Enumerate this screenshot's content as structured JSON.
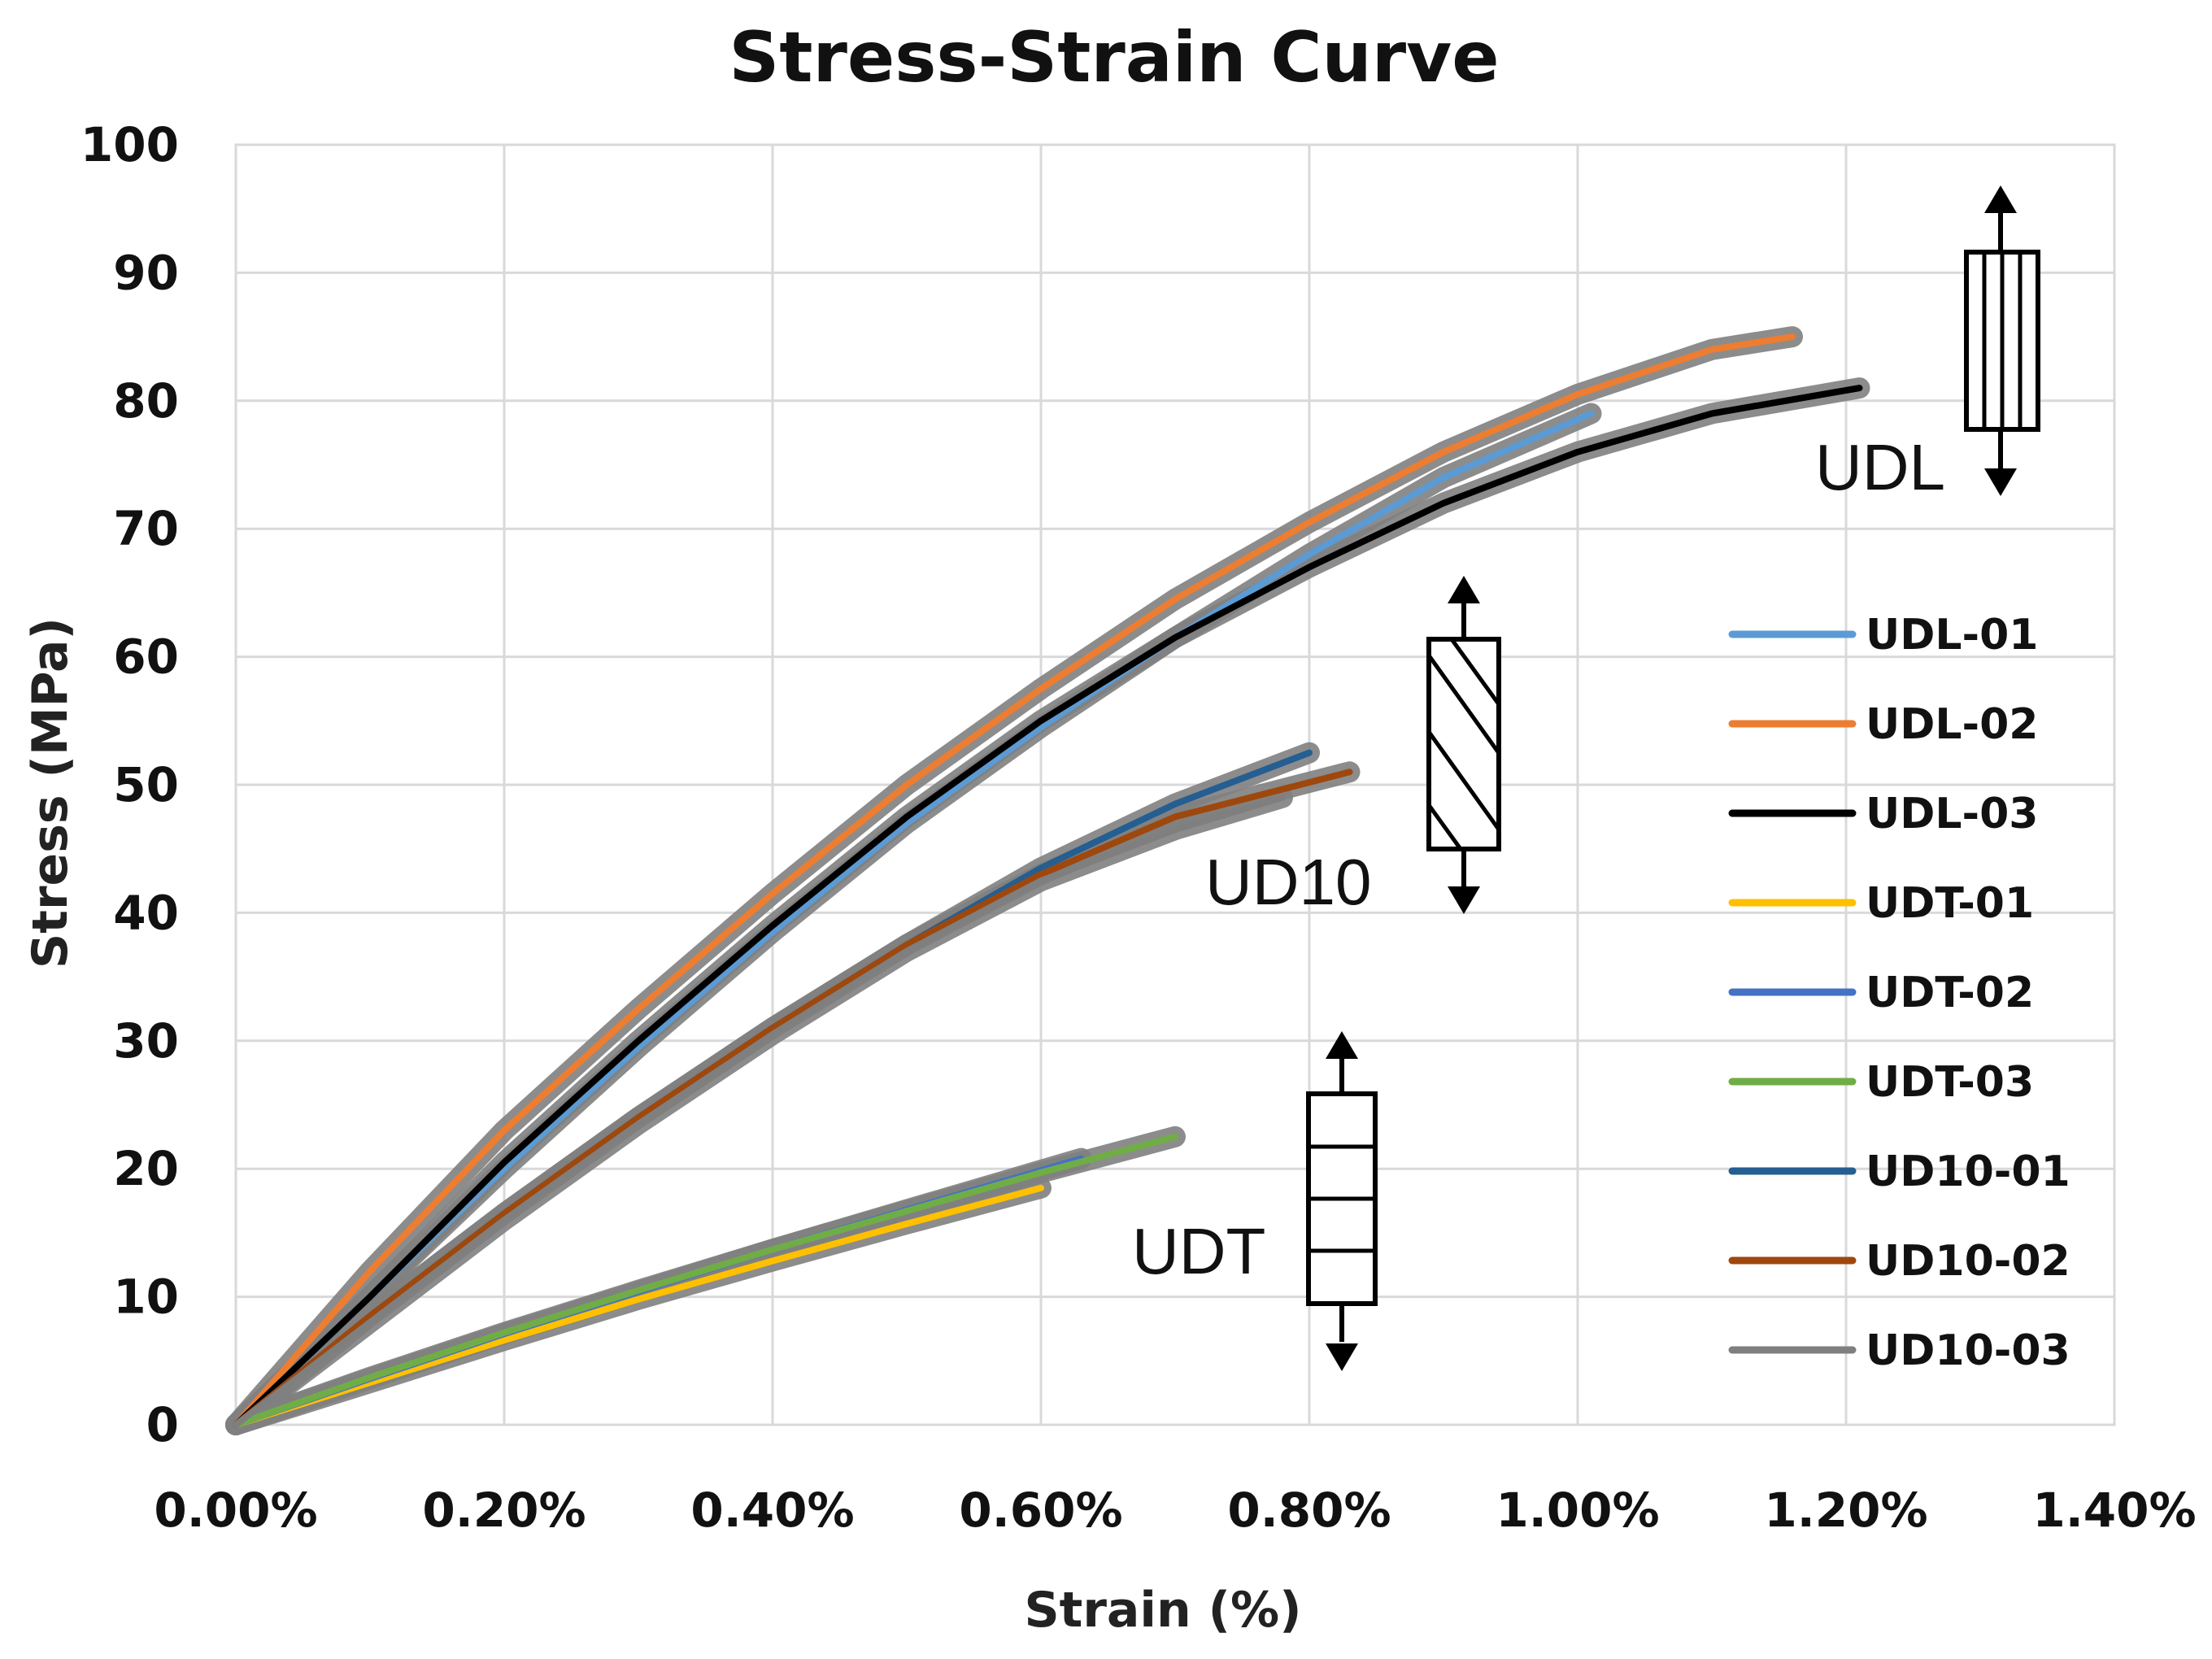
{
  "chart_data": {
    "type": "line",
    "title": "Stress-Strain Curve",
    "xlabel": "Strain (%)",
    "ylabel": "Stress (MPa)",
    "xlim": [
      0,
      1.4
    ],
    "ylim": [
      0,
      100
    ],
    "xticks": [
      0,
      0.2,
      0.4,
      0.6,
      0.8,
      1.0,
      1.2,
      1.4
    ],
    "xtick_labels": [
      "0.00%",
      "0.20%",
      "0.40%",
      "0.60%",
      "0.80%",
      "1.00%",
      "1.20%",
      "1.40%"
    ],
    "yticks": [
      0,
      10,
      20,
      30,
      40,
      50,
      60,
      70,
      80,
      90,
      100
    ],
    "ytick_labels": [
      "0",
      "10",
      "20",
      "30",
      "40",
      "50",
      "60",
      "70",
      "80",
      "90",
      "100"
    ],
    "grid": true,
    "legend_position": "right",
    "series": [
      {
        "name": "UDL-01",
        "color": "#5b9bd5",
        "x": [
          0,
          0.1,
          0.2,
          0.3,
          0.4,
          0.5,
          0.6,
          0.7,
          0.8,
          0.9,
          1.01
        ],
        "y": [
          0,
          10,
          20,
          29.5,
          38.5,
          47,
          54.5,
          61.5,
          68,
          74,
          79
        ]
      },
      {
        "name": "UDL-02",
        "color": "#ed7d31",
        "x": [
          0,
          0.1,
          0.2,
          0.3,
          0.4,
          0.5,
          0.6,
          0.7,
          0.8,
          0.9,
          1.0,
          1.1,
          1.16
        ],
        "y": [
          0,
          12,
          23,
          32.5,
          41.5,
          50,
          57.5,
          64.5,
          70.5,
          76,
          80.5,
          84,
          85
        ]
      },
      {
        "name": "UDL-03",
        "color": "#000000",
        "x": [
          0,
          0.1,
          0.2,
          0.3,
          0.4,
          0.5,
          0.6,
          0.7,
          0.8,
          0.9,
          1.0,
          1.1,
          1.21
        ],
        "y": [
          0,
          10,
          20.5,
          30,
          39,
          47.5,
          55,
          61.5,
          67,
          72,
          76,
          79,
          81
        ]
      },
      {
        "name": "UDT-01",
        "color": "#ffc000",
        "x": [
          0,
          0.1,
          0.2,
          0.3,
          0.4,
          0.5,
          0.6
        ],
        "y": [
          0,
          3.3,
          6.6,
          9.8,
          12.8,
          15.7,
          18.5
        ]
      },
      {
        "name": "UDT-02",
        "color": "#4472c4",
        "x": [
          0,
          0.1,
          0.2,
          0.3,
          0.4,
          0.5,
          0.63
        ],
        "y": [
          0,
          3.6,
          7.1,
          10.4,
          13.7,
          16.8,
          20.8
        ]
      },
      {
        "name": "UDT-03",
        "color": "#70ad47",
        "x": [
          0,
          0.1,
          0.2,
          0.3,
          0.4,
          0.5,
          0.6,
          0.7
        ],
        "y": [
          0,
          3.7,
          7.2,
          10.5,
          13.7,
          16.7,
          19.7,
          22.5
        ]
      },
      {
        "name": "UD10-01",
        "color": "#255e91",
        "x": [
          0,
          0.1,
          0.2,
          0.3,
          0.4,
          0.5,
          0.6,
          0.7,
          0.8
        ],
        "y": [
          0,
          8.5,
          16.5,
          24,
          31,
          37.5,
          43.5,
          48.5,
          52.5
        ]
      },
      {
        "name": "UD10-02",
        "color": "#9e480e",
        "x": [
          0,
          0.1,
          0.2,
          0.3,
          0.4,
          0.5,
          0.6,
          0.7,
          0.83
        ],
        "y": [
          0,
          8.5,
          16.5,
          24,
          31,
          37.5,
          43,
          47.5,
          51
        ]
      },
      {
        "name": "UD10-03",
        "color": "#7f7f7f",
        "x": [
          0,
          0.1,
          0.2,
          0.3,
          0.4,
          0.5,
          0.6,
          0.7,
          0.78
        ],
        "y": [
          0,
          8,
          16,
          23.5,
          30.5,
          37,
          42.5,
          46.5,
          49
        ]
      }
    ],
    "annotations": [
      "UDL",
      "UD10",
      "UDT"
    ]
  }
}
